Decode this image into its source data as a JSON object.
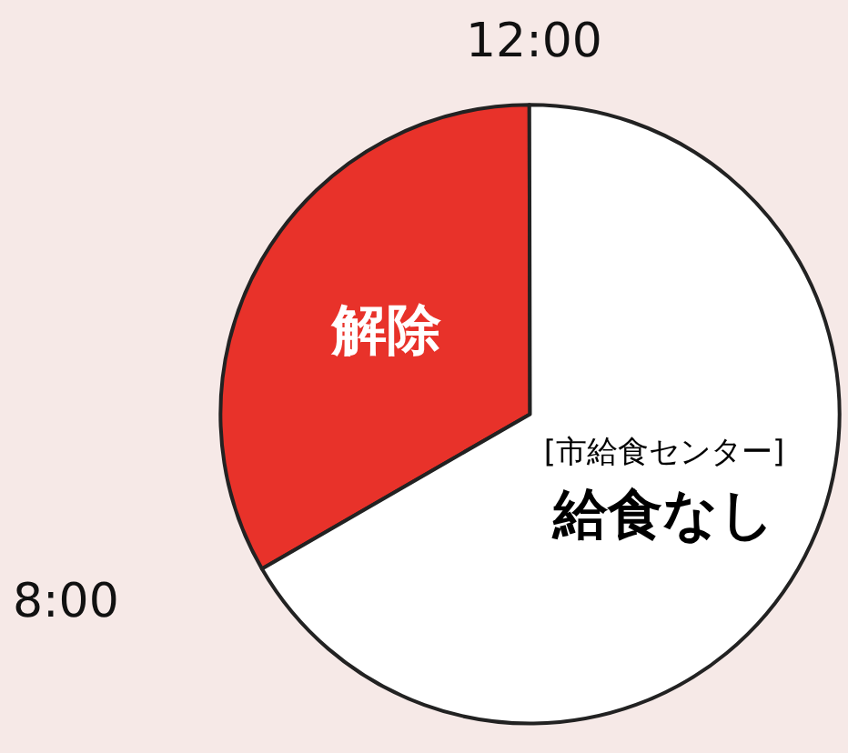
{
  "chart_data": {
    "type": "pie",
    "categories": [
      "解除",
      "[市給食センター]\n給食なし"
    ],
    "values": [
      33.3,
      66.7
    ],
    "colors": [
      "#e8322a",
      "#ffffff"
    ],
    "annotations": [
      "12:00",
      "8:00"
    ]
  }
}
